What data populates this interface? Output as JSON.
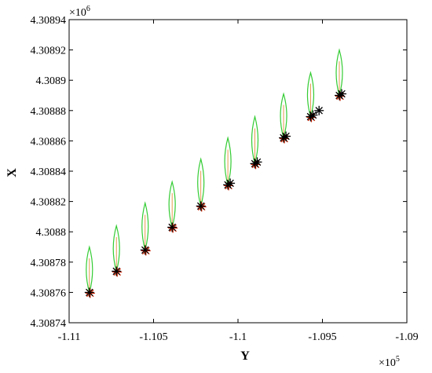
{
  "chart_data": {
    "type": "scatter",
    "title": "",
    "xlabel": "Y",
    "ylabel": "X",
    "x_multiplier_label": "×10",
    "x_multiplier_exp": "5",
    "y_multiplier_label": "×10",
    "y_multiplier_exp": "6",
    "xlim": [
      -1.11,
      -1.09
    ],
    "ylim": [
      4.30874,
      4.30894
    ],
    "xticks": [
      -1.11,
      -1.105,
      -1.1,
      -1.095,
      -1.09
    ],
    "xtick_labels": [
      "-1.11",
      "-1.105",
      "-1.1",
      "-1.095",
      "-1.09"
    ],
    "yticks": [
      4.30874,
      4.30876,
      4.30878,
      4.3088,
      4.30882,
      4.30884,
      4.30886,
      4.30888,
      4.3089,
      4.30892,
      4.30894
    ],
    "ytick_labels": [
      "4.30874",
      "4.30876",
      "4.30878",
      "4.3088",
      "4.30882",
      "4.30884",
      "4.30886",
      "4.30888",
      "4.3089",
      "4.30892",
      "4.30894"
    ],
    "grid": false,
    "colors": {
      "ellipse": "#33cc33",
      "marker_black": "#000000",
      "marker_red": "#cc2200"
    },
    "series": [
      {
        "x": [
          -1.1088,
          -1.1072,
          -1.1055,
          -1.1039,
          -1.1022,
          -1.1006,
          -1.099,
          -1.0973,
          -1.0957,
          -1.094
        ],
        "y": [
          4.30876,
          4.308774,
          4.308788,
          4.308803,
          4.308817,
          4.308831,
          4.308845,
          4.308862,
          4.308876,
          4.30889
        ],
        "y_top": [
          4.30879,
          4.308804,
          4.308819,
          4.308833,
          4.308848,
          4.308862,
          4.308876,
          4.308891,
          4.308905,
          4.30892
        ]
      }
    ]
  }
}
